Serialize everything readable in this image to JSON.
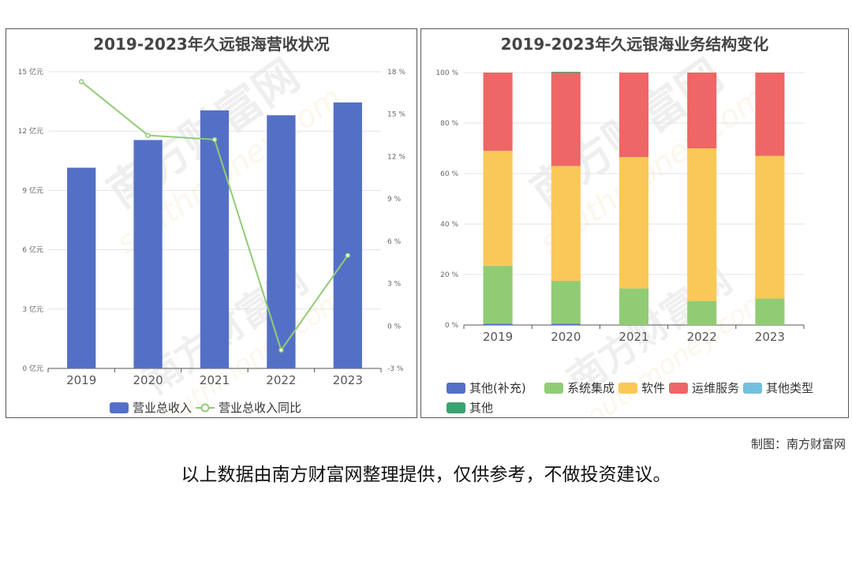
{
  "left_chart": {
    "chart_data": {
      "type": "bar",
      "title": "2019-2023年久远银海营收状况",
      "categories": [
        "2019",
        "2020",
        "2021",
        "2022",
        "2023"
      ],
      "series": [
        {
          "name": "营业总收入",
          "type": "bar",
          "axis": "left",
          "values": [
            10.15,
            11.55,
            13.05,
            12.8,
            13.45
          ],
          "color": "#5470c6"
        },
        {
          "name": "营业总收入同比",
          "type": "line",
          "axis": "right",
          "values": [
            17.3,
            13.5,
            13.2,
            -1.7,
            5.0
          ],
          "color": "#91cc75"
        }
      ],
      "y_left": {
        "ticks": [
          "0 亿元",
          "3 亿元",
          "6 亿元",
          "9 亿元",
          "12 亿元",
          "15 亿元"
        ],
        "range": [
          0,
          15
        ]
      },
      "y_right": {
        "ticks": [
          "-3 %",
          "0 %",
          "3 %",
          "6 %",
          "9 %",
          "12 %",
          "15 %",
          "18 %"
        ],
        "range": [
          -3,
          18
        ]
      },
      "legend_position": "bottom",
      "grid": true
    }
  },
  "right_chart": {
    "chart_data": {
      "type": "bar",
      "stacked": true,
      "title": "2019-2023年久远银海业务结构变化",
      "categories": [
        "2019",
        "2020",
        "2021",
        "2022",
        "2023"
      ],
      "series": [
        {
          "name": "其他(补充)",
          "values": [
            0.5,
            0.5,
            0,
            0,
            0
          ],
          "color": "#5470c6"
        },
        {
          "name": "系统集成",
          "values": [
            23,
            17,
            14.5,
            9.5,
            10.5
          ],
          "color": "#91cc75"
        },
        {
          "name": "软件",
          "values": [
            45.5,
            45.5,
            52,
            60.5,
            56.5
          ],
          "color": "#fac858"
        },
        {
          "name": "运维服务",
          "values": [
            31,
            37,
            33.5,
            30,
            33
          ],
          "color": "#ee6666"
        },
        {
          "name": "其他类型",
          "values": [
            0,
            0,
            0,
            0,
            0
          ],
          "color": "#73c0de"
        },
        {
          "name": "其他",
          "values": [
            0,
            0.3,
            0,
            0,
            0
          ],
          "color": "#3ba272"
        }
      ],
      "y": {
        "ticks": [
          "0 %",
          "20 %",
          "40 %",
          "60 %",
          "80 %",
          "100 %"
        ],
        "range": [
          0,
          100
        ]
      },
      "legend_position": "bottom",
      "grid": true
    }
  },
  "footer": {
    "credit": "制图：南方财富网",
    "disclaimer": "以上数据由南方财富网整理提供，仅供参考，不做投资建议。"
  },
  "watermark": {
    "cn": "南方财富网",
    "en": "southmoney.com"
  }
}
